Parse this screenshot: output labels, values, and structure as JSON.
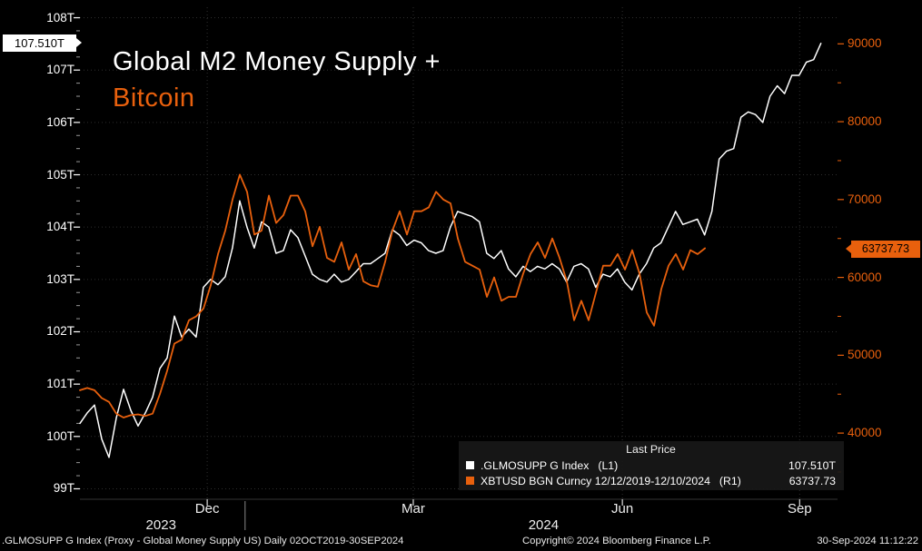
{
  "title": {
    "line1": "Global M2 Money Supply +",
    "line2": "Bitcoin"
  },
  "colors": {
    "background": "#000000",
    "white_series": "#FFFFFF",
    "orange": "#E8600D",
    "grid": "#2E2E2E",
    "axis_text": "#FFFFFF"
  },
  "legend": {
    "header": "Last Price",
    "items": [
      {
        "label": ".GLMOSUPP G Index",
        "tag": "(L1)",
        "value": "107.510T",
        "color": "#FFFFFF"
      },
      {
        "label": "XBTUSD BGN Curncy 12/12/2019-12/10/2024",
        "tag": "(R1)",
        "value": "63737.73",
        "color": "#E8600D"
      }
    ]
  },
  "footer": {
    "left": ".GLMOSUPP G Index (Proxy - Global Money Supply US)  Daily 02OCT2019-30SEP2024",
    "center": "Copyright© 2024 Bloomberg Finance L.P.",
    "right": "30-Sep-2024 11:12:22"
  },
  "chart_data": {
    "type": "line",
    "title": "Global M2 Money Supply + Bitcoin",
    "left_axis": {
      "ticks": [
        108,
        107,
        106,
        105,
        104,
        103,
        102,
        101,
        100,
        99
      ],
      "tick_suffix": "T",
      "ylim": [
        98.8,
        108.2
      ],
      "minor_step": 0.25,
      "last_value": 107.51,
      "last_label": "107.510T"
    },
    "right_axis": {
      "ticks": [
        90000,
        80000,
        70000,
        60000,
        50000,
        40000
      ],
      "ylim": [
        31500,
        94700
      ],
      "minor_step": 5000,
      "last_value": 63737.73,
      "last_label": "63737.73"
    },
    "x_ticks": [
      {
        "label": "Dec",
        "f": 0.168
      },
      {
        "label": "Mar",
        "f": 0.44
      },
      {
        "label": "Jun",
        "f": 0.716
      },
      {
        "label": "Sep",
        "f": 0.95
      }
    ],
    "year_labels": [
      {
        "label": "2023",
        "f": 0.107
      },
      {
        "label": "2024",
        "f": 0.612
      }
    ],
    "year_divider_f": 0.218,
    "series": [
      {
        "name": ".GLMOSUPP G Index",
        "axis": "left",
        "color": "#FFFFFF",
        "width": 1.5,
        "unit": "T",
        "x_range": [
          0,
          0.978
        ],
        "values": [
          100.25,
          100.45,
          100.6,
          99.95,
          99.6,
          100.35,
          100.9,
          100.5,
          100.2,
          100.45,
          100.75,
          101.3,
          101.5,
          102.3,
          101.9,
          102.05,
          101.9,
          102.85,
          103.0,
          102.9,
          103.05,
          103.6,
          104.5,
          104.0,
          103.6,
          104.1,
          104.0,
          103.5,
          103.55,
          103.95,
          103.8,
          103.45,
          103.1,
          103.0,
          102.95,
          103.1,
          102.95,
          103.0,
          103.15,
          103.3,
          103.3,
          103.4,
          103.5,
          103.95,
          103.85,
          103.65,
          103.75,
          103.7,
          103.55,
          103.5,
          103.55,
          104.0,
          104.3,
          104.25,
          104.2,
          104.1,
          103.5,
          103.4,
          103.55,
          103.2,
          103.05,
          103.25,
          103.15,
          103.25,
          103.2,
          103.3,
          103.2,
          102.95,
          103.25,
          103.3,
          103.2,
          102.85,
          103.1,
          103.05,
          103.2,
          102.95,
          102.8,
          103.1,
          103.3,
          103.6,
          103.7,
          104.0,
          104.3,
          104.05,
          104.1,
          104.15,
          103.85,
          104.3,
          105.3,
          105.45,
          105.5,
          106.1,
          106.2,
          106.15,
          106.0,
          106.5,
          106.7,
          106.55,
          106.9,
          106.9,
          107.15,
          107.2,
          107.51
        ]
      },
      {
        "name": "XBTUSD BGN Curncy",
        "axis": "right",
        "color": "#E8600D",
        "width": 1.8,
        "unit": "USD",
        "x_range": [
          0,
          0.825
        ],
        "values": [
          45500,
          45800,
          45500,
          44500,
          44000,
          42500,
          42000,
          42300,
          42400,
          42200,
          42500,
          45000,
          48000,
          51500,
          52000,
          54500,
          55000,
          56000,
          59000,
          63000,
          66000,
          70000,
          73200,
          71000,
          65500,
          66000,
          70500,
          67000,
          68000,
          70500,
          70500,
          68500,
          64000,
          66500,
          62500,
          62000,
          64500,
          61000,
          63000,
          59500,
          59000,
          58800,
          62000,
          66000,
          68500,
          65500,
          68500,
          68500,
          69000,
          71000,
          70000,
          69500,
          65000,
          62000,
          61500,
          61000,
          57500,
          60000,
          57000,
          57500,
          57500,
          60500,
          63000,
          64500,
          62500,
          65000,
          62500,
          59500,
          54500,
          57000,
          54500,
          58000,
          61500,
          61500,
          63000,
          61000,
          63500,
          60500,
          55500,
          53800,
          58500,
          61500,
          63000,
          61000,
          63500,
          63000,
          63737.73
        ]
      }
    ]
  }
}
